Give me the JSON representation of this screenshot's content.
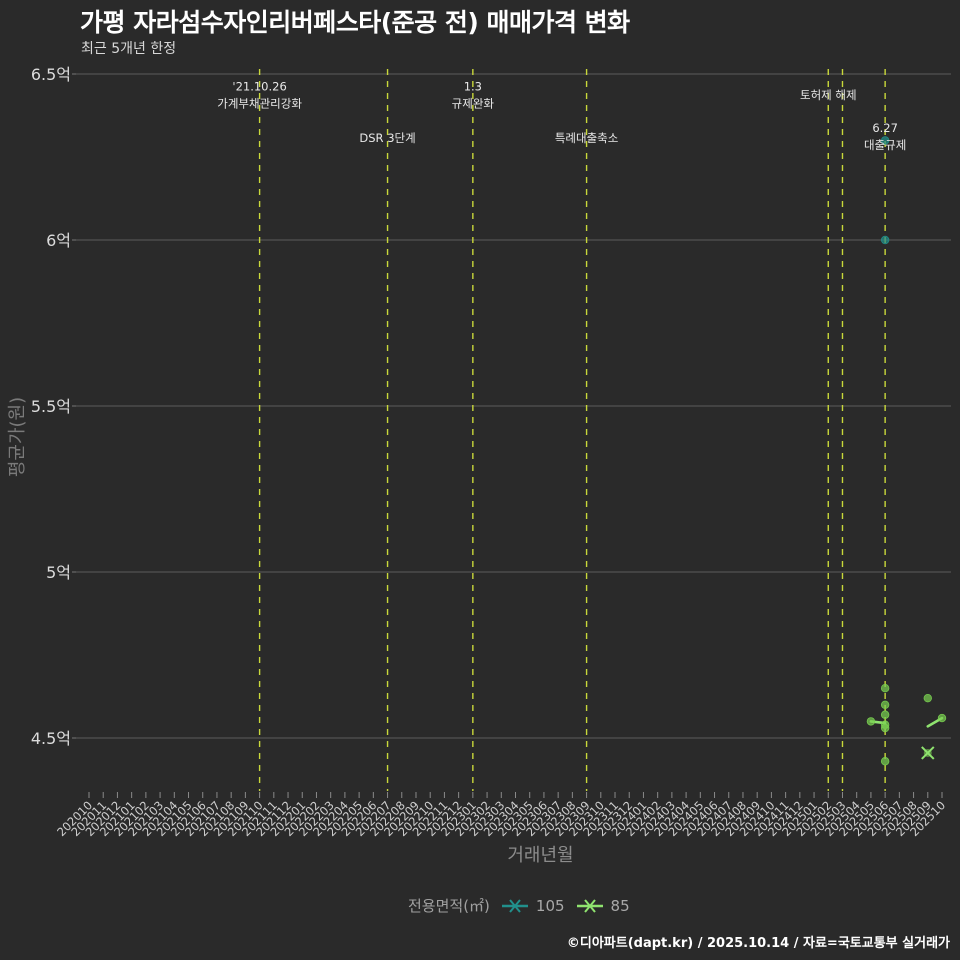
{
  "header": {
    "title": "가평 자라섬수자인리버페스타(준공 전) 매매가격 변화",
    "subtitle": "최근 5개년 한정"
  },
  "legend": {
    "title": "전용면적(㎡)",
    "items": [
      {
        "label": "105",
        "color": "#21908C"
      },
      {
        "label": "85",
        "color": "#7AD151"
      }
    ]
  },
  "caption": "©디아파트(dapt.kr) / 2025.10.14 / 자료=국토교통부 실거래가",
  "chart_data": {
    "type": "line",
    "title": "가평 자라섬수자인리버페스타(준공 전) 매매가격 변화",
    "subtitle": "최근 5개년 한정",
    "xlabel": "거래년월",
    "ylabel": "평균가(원)",
    "ylim": [
      4.32,
      6.53
    ],
    "y_unit": "억",
    "grid": true,
    "legend_position": "bottom",
    "y_ticks": [
      4.5,
      5,
      5.5,
      6,
      6.5
    ],
    "y_tick_labels": [
      "4.5억",
      "5억",
      "5.5억",
      "6억",
      "6.5억"
    ],
    "categories": [
      "202010",
      "202011",
      "202012",
      "202101",
      "202102",
      "202103",
      "202104",
      "202105",
      "202106",
      "202107",
      "202108",
      "202109",
      "202110",
      "202111",
      "202112",
      "202201",
      "202202",
      "202203",
      "202204",
      "202205",
      "202206",
      "202207",
      "202208",
      "202209",
      "202210",
      "202211",
      "202212",
      "202301",
      "202302",
      "202303",
      "202304",
      "202305",
      "202306",
      "202307",
      "202308",
      "202309",
      "202310",
      "202311",
      "202312",
      "202401",
      "202402",
      "202403",
      "202404",
      "202405",
      "202406",
      "202407",
      "202408",
      "202409",
      "202410",
      "202411",
      "202412",
      "202501",
      "202502",
      "202503",
      "202504",
      "202505",
      "202506",
      "202507",
      "202508",
      "202509",
      "202510"
    ],
    "series": [
      {
        "name": "105",
        "color": "#21908C",
        "line_segments": [],
        "points": [
          {
            "x": "202506",
            "y": 6.3
          },
          {
            "x": "202506",
            "y": 6.0
          }
        ],
        "x_markers": []
      },
      {
        "name": "85",
        "color": "#7AD151",
        "line_segments": [
          [
            {
              "x": "202505",
              "y": 4.55
            },
            {
              "x": "202506",
              "y": 4.545
            }
          ],
          [
            {
              "x": "202509",
              "y": 4.535
            },
            {
              "x": "202510",
              "y": 4.56
            }
          ]
        ],
        "points": [
          {
            "x": "202505",
            "y": 4.55
          },
          {
            "x": "202506",
            "y": 4.65
          },
          {
            "x": "202506",
            "y": 4.6
          },
          {
            "x": "202506",
            "y": 4.57
          },
          {
            "x": "202506",
            "y": 4.54
          },
          {
            "x": "202506",
            "y": 4.53
          },
          {
            "x": "202506",
            "y": 4.43
          },
          {
            "x": "202509",
            "y": 4.62
          },
          {
            "x": "202510",
            "y": 4.56
          }
        ],
        "x_markers": [
          {
            "x": "202509",
            "y": 4.455
          }
        ]
      }
    ],
    "events": [
      {
        "x": "202110",
        "label": [
          "'21.10.26",
          "가계부채관리강화"
        ],
        "label_y": 6.45
      },
      {
        "x": "202207",
        "label": [
          "DSR 3단계"
        ],
        "label_y": 6.295
      },
      {
        "x": "202301",
        "label": [
          "1.3",
          "규제완화"
        ],
        "label_y": 6.45
      },
      {
        "x": "202309",
        "label": [
          "특례대출축소"
        ],
        "label_y": 6.295
      },
      {
        "x": "202502",
        "label": [
          "토허제 해제"
        ],
        "label_y": 6.425
      },
      {
        "x": "202503",
        "label": [],
        "label_y": 6.425
      },
      {
        "x": "202506",
        "label": [
          "6.27",
          "대출규제"
        ],
        "label_y": 6.325
      }
    ]
  }
}
